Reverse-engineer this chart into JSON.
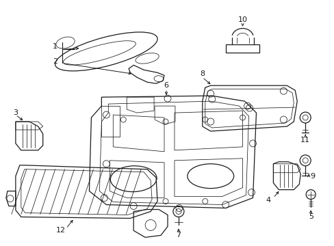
{
  "background_color": "#ffffff",
  "line_color": "#1a1a1a",
  "lw": 0.9,
  "tlw": 0.55,
  "fs": 8.0,
  "figsize": [
    4.89,
    3.6
  ],
  "dpi": 100
}
